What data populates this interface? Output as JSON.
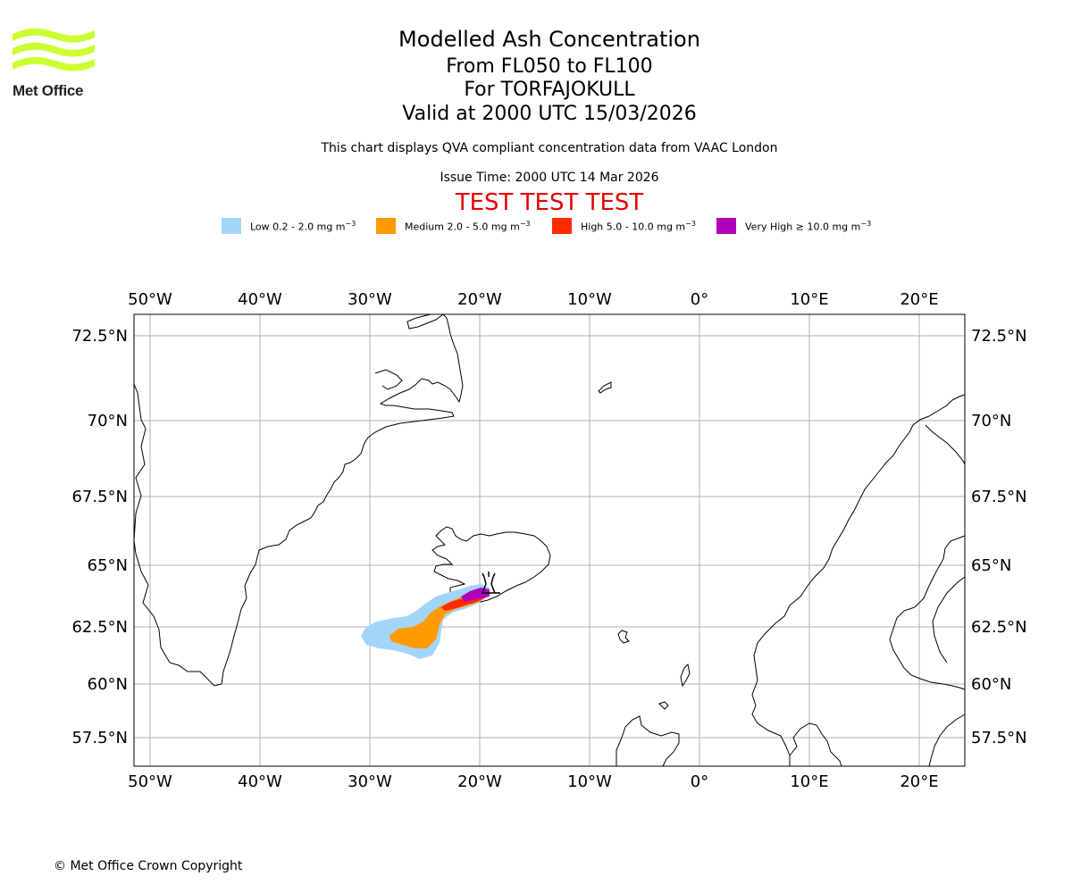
{
  "branding": {
    "logo_text": "Met Office",
    "logo_color": "#ccff33"
  },
  "title": {
    "line1": "Modelled Ash Concentration",
    "line2": "From FL050 to FL100",
    "line3": "For TORFAJOKULL",
    "line4": "Valid at 2000 UTC 15/03/2026"
  },
  "subtitle": "This chart displays QVA compliant concentration data from VAAC London",
  "issue_time": "Issue Time: 2000 UTC 14 Mar 2026",
  "test_banner": "TEST TEST TEST",
  "legend": [
    {
      "label": "Low 0.2 - 2.0 mg m",
      "color": "#a3d5fb"
    },
    {
      "label": "Medium 2.0 - 5.0 mg m",
      "color": "#ff9a00"
    },
    {
      "label": "High 5.0 - 10.0 mg m",
      "color": "#ff2a00"
    },
    {
      "label": "Very High ≥ 10.0 mg m",
      "color": "#b000b8"
    }
  ],
  "legend_unit_exponent": "−3",
  "map": {
    "lon_labels": [
      "50°W",
      "40°W",
      "30°W",
      "20°W",
      "10°W",
      "0°",
      "10°E",
      "20°E"
    ],
    "lat_labels": [
      "72.5°N",
      "70°N",
      "67.5°N",
      "65°N",
      "62.5°N",
      "60°N",
      "57.5°N"
    ],
    "volcano_name": "TORFAJOKULL"
  },
  "copyright": "© Met Office Crown Copyright"
}
